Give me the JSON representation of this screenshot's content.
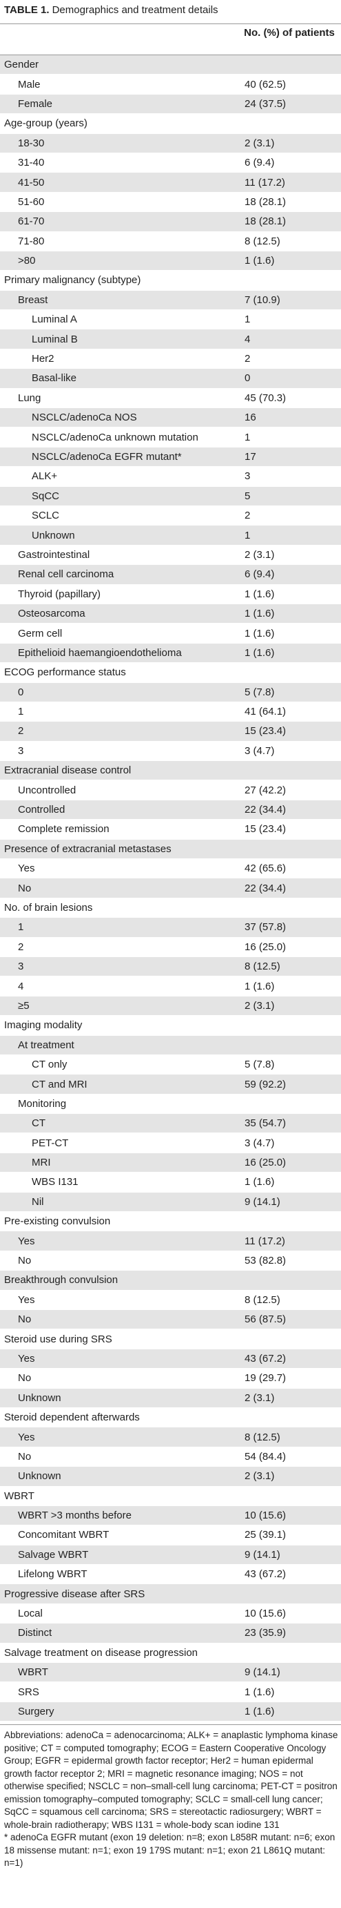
{
  "header": {
    "label": "TABLE 1.",
    "title": "Demographics and treatment details"
  },
  "table": {
    "column_header": "No. (%) of patients",
    "rows": [
      {
        "label": "Gender",
        "value": null,
        "indent": 0
      },
      {
        "label": "Male",
        "value": "40 (62.5)",
        "indent": 1
      },
      {
        "label": "Female",
        "value": "24 (37.5)",
        "indent": 1
      },
      {
        "label": "Age-group (years)",
        "value": null,
        "indent": 0
      },
      {
        "label": "18-30",
        "value": "2 (3.1)",
        "indent": 1
      },
      {
        "label": "31-40",
        "value": "6 (9.4)",
        "indent": 1
      },
      {
        "label": "41-50",
        "value": "11 (17.2)",
        "indent": 1
      },
      {
        "label": "51-60",
        "value": "18 (28.1)",
        "indent": 1
      },
      {
        "label": "61-70",
        "value": "18 (28.1)",
        "indent": 1
      },
      {
        "label": "71-80",
        "value": "8 (12.5)",
        "indent": 1
      },
      {
        "label": ">80",
        "value": "1 (1.6)",
        "indent": 1
      },
      {
        "label": "Primary malignancy (subtype)",
        "value": null,
        "indent": 0
      },
      {
        "label": "Breast",
        "value": "7 (10.9)",
        "indent": 1
      },
      {
        "label": "Luminal A",
        "value": "1",
        "indent": 2
      },
      {
        "label": "Luminal B",
        "value": "4",
        "indent": 2
      },
      {
        "label": "Her2",
        "value": "2",
        "indent": 2
      },
      {
        "label": "Basal-like",
        "value": "0",
        "indent": 2
      },
      {
        "label": "Lung",
        "value": "45 (70.3)",
        "indent": 1
      },
      {
        "label": "NSCLC/adenoCa NOS",
        "value": "16",
        "indent": 2
      },
      {
        "label": "NSCLC/adenoCa unknown mutation",
        "value": "1",
        "indent": 2
      },
      {
        "label": "NSCLC/adenoCa EGFR mutant*",
        "value": "17",
        "indent": 2
      },
      {
        "label": "ALK+",
        "value": "3",
        "indent": 2
      },
      {
        "label": "SqCC",
        "value": "5",
        "indent": 2
      },
      {
        "label": "SCLC",
        "value": "2",
        "indent": 2
      },
      {
        "label": "Unknown",
        "value": "1",
        "indent": 2
      },
      {
        "label": "Gastrointestinal",
        "value": "2 (3.1)",
        "indent": 1
      },
      {
        "label": "Renal cell carcinoma",
        "value": "6 (9.4)",
        "indent": 1
      },
      {
        "label": "Thyroid (papillary)",
        "value": "1 (1.6)",
        "indent": 1
      },
      {
        "label": "Osteosarcoma",
        "value": "1 (1.6)",
        "indent": 1
      },
      {
        "label": "Germ cell",
        "value": "1 (1.6)",
        "indent": 1
      },
      {
        "label": "Epithelioid haemangioendothelioma",
        "value": "1 (1.6)",
        "indent": 1
      },
      {
        "label": "ECOG performance status",
        "value": null,
        "indent": 0
      },
      {
        "label": "0",
        "value": "5 (7.8)",
        "indent": 1
      },
      {
        "label": "1",
        "value": "41 (64.1)",
        "indent": 1
      },
      {
        "label": "2",
        "value": "15 (23.4)",
        "indent": 1
      },
      {
        "label": "3",
        "value": "3 (4.7)",
        "indent": 1
      },
      {
        "label": "Extracranial disease control",
        "value": null,
        "indent": 0
      },
      {
        "label": "Uncontrolled",
        "value": "27 (42.2)",
        "indent": 1
      },
      {
        "label": "Controlled",
        "value": "22 (34.4)",
        "indent": 1
      },
      {
        "label": "Complete remission",
        "value": "15 (23.4)",
        "indent": 1
      },
      {
        "label": "Presence of extracranial metastases",
        "value": null,
        "indent": 0
      },
      {
        "label": "Yes",
        "value": "42 (65.6)",
        "indent": 1
      },
      {
        "label": "No",
        "value": "22 (34.4)",
        "indent": 1
      },
      {
        "label": "No. of brain lesions",
        "value": null,
        "indent": 0
      },
      {
        "label": "1",
        "value": "37 (57.8)",
        "indent": 1
      },
      {
        "label": "2",
        "value": "16 (25.0)",
        "indent": 1
      },
      {
        "label": "3",
        "value": "8 (12.5)",
        "indent": 1
      },
      {
        "label": "4",
        "value": "1 (1.6)",
        "indent": 1
      },
      {
        "label": "≥5",
        "value": "2 (3.1)",
        "indent": 1
      },
      {
        "label": "Imaging modality",
        "value": null,
        "indent": 0
      },
      {
        "label": "At treatment",
        "value": null,
        "indent": 1
      },
      {
        "label": "CT only",
        "value": "5 (7.8)",
        "indent": 2
      },
      {
        "label": "CT and MRI",
        "value": "59 (92.2)",
        "indent": 2
      },
      {
        "label": "Monitoring",
        "value": null,
        "indent": 1
      },
      {
        "label": "CT",
        "value": "35 (54.7)",
        "indent": 2
      },
      {
        "label": "PET-CT",
        "value": "3 (4.7)",
        "indent": 2
      },
      {
        "label": "MRI",
        "value": "16 (25.0)",
        "indent": 2
      },
      {
        "label": "WBS I131",
        "value": "1 (1.6)",
        "indent": 2
      },
      {
        "label": "Nil",
        "value": "9 (14.1)",
        "indent": 2
      },
      {
        "label": "Pre-existing convulsion",
        "value": null,
        "indent": 0
      },
      {
        "label": "Yes",
        "value": "11 (17.2)",
        "indent": 1
      },
      {
        "label": "No",
        "value": "53 (82.8)",
        "indent": 1
      },
      {
        "label": "Breakthrough convulsion",
        "value": null,
        "indent": 0
      },
      {
        "label": "Yes",
        "value": "8 (12.5)",
        "indent": 1
      },
      {
        "label": "No",
        "value": "56 (87.5)",
        "indent": 1
      },
      {
        "label": "Steroid use during SRS",
        "value": null,
        "indent": 0
      },
      {
        "label": "Yes",
        "value": "43 (67.2)",
        "indent": 1
      },
      {
        "label": "No",
        "value": "19 (29.7)",
        "indent": 1
      },
      {
        "label": "Unknown",
        "value": "2 (3.1)",
        "indent": 1
      },
      {
        "label": "Steroid dependent afterwards",
        "value": null,
        "indent": 0
      },
      {
        "label": "Yes",
        "value": "8 (12.5)",
        "indent": 1
      },
      {
        "label": "No",
        "value": "54 (84.4)",
        "indent": 1
      },
      {
        "label": "Unknown",
        "value": "2 (3.1)",
        "indent": 1
      },
      {
        "label": "WBRT",
        "value": null,
        "indent": 0
      },
      {
        "label": "WBRT >3 months before",
        "value": "10 (15.6)",
        "indent": 1
      },
      {
        "label": "Concomitant WBRT",
        "value": "25 (39.1)",
        "indent": 1
      },
      {
        "label": "Salvage WBRT",
        "value": "9 (14.1)",
        "indent": 1
      },
      {
        "label": "Lifelong WBRT",
        "value": "43 (67.2)",
        "indent": 1
      },
      {
        "label": "Progressive disease after SRS",
        "value": null,
        "indent": 0
      },
      {
        "label": "Local",
        "value": "10 (15.6)",
        "indent": 1
      },
      {
        "label": "Distinct",
        "value": "23 (35.9)",
        "indent": 1
      },
      {
        "label": "Salvage treatment on disease progression",
        "value": null,
        "indent": 0
      },
      {
        "label": "WBRT",
        "value": "9 (14.1)",
        "indent": 1
      },
      {
        "label": "SRS",
        "value": "1 (1.6)",
        "indent": 1
      },
      {
        "label": "Surgery",
        "value": "1 (1.6)",
        "indent": 1
      }
    ]
  },
  "notes": {
    "abbreviations": "Abbreviations: adenoCa = adenocarcinoma; ALK+ = anaplastic lymphoma kinase positive; CT = computed tomography; ECOG = Eastern Cooperative Oncology Group; EGFR = epidermal growth factor receptor; Her2 = human epidermal growth factor receptor 2; MRI = magnetic resonance imaging; NOS = not otherwise specified; NSCLC = non–small-cell lung carcinoma; PET-CT = positron emission tomography–computed tomography; SCLC = small-cell lung cancer; SqCC = squamous cell carcinoma; SRS = stereotactic radiosurgery; WBRT = whole-brain radiotherapy; WBS I131 = whole-body scan iodine 131",
    "asterisk": "*   adenoCa EGFR mutant (exon 19 deletion: n=8; exon L858R mutant: n=6; exon 18 missense mutant: n=1; exon 19 179S mutant: n=1; exon 21 L861Q mutant: n=1)"
  }
}
